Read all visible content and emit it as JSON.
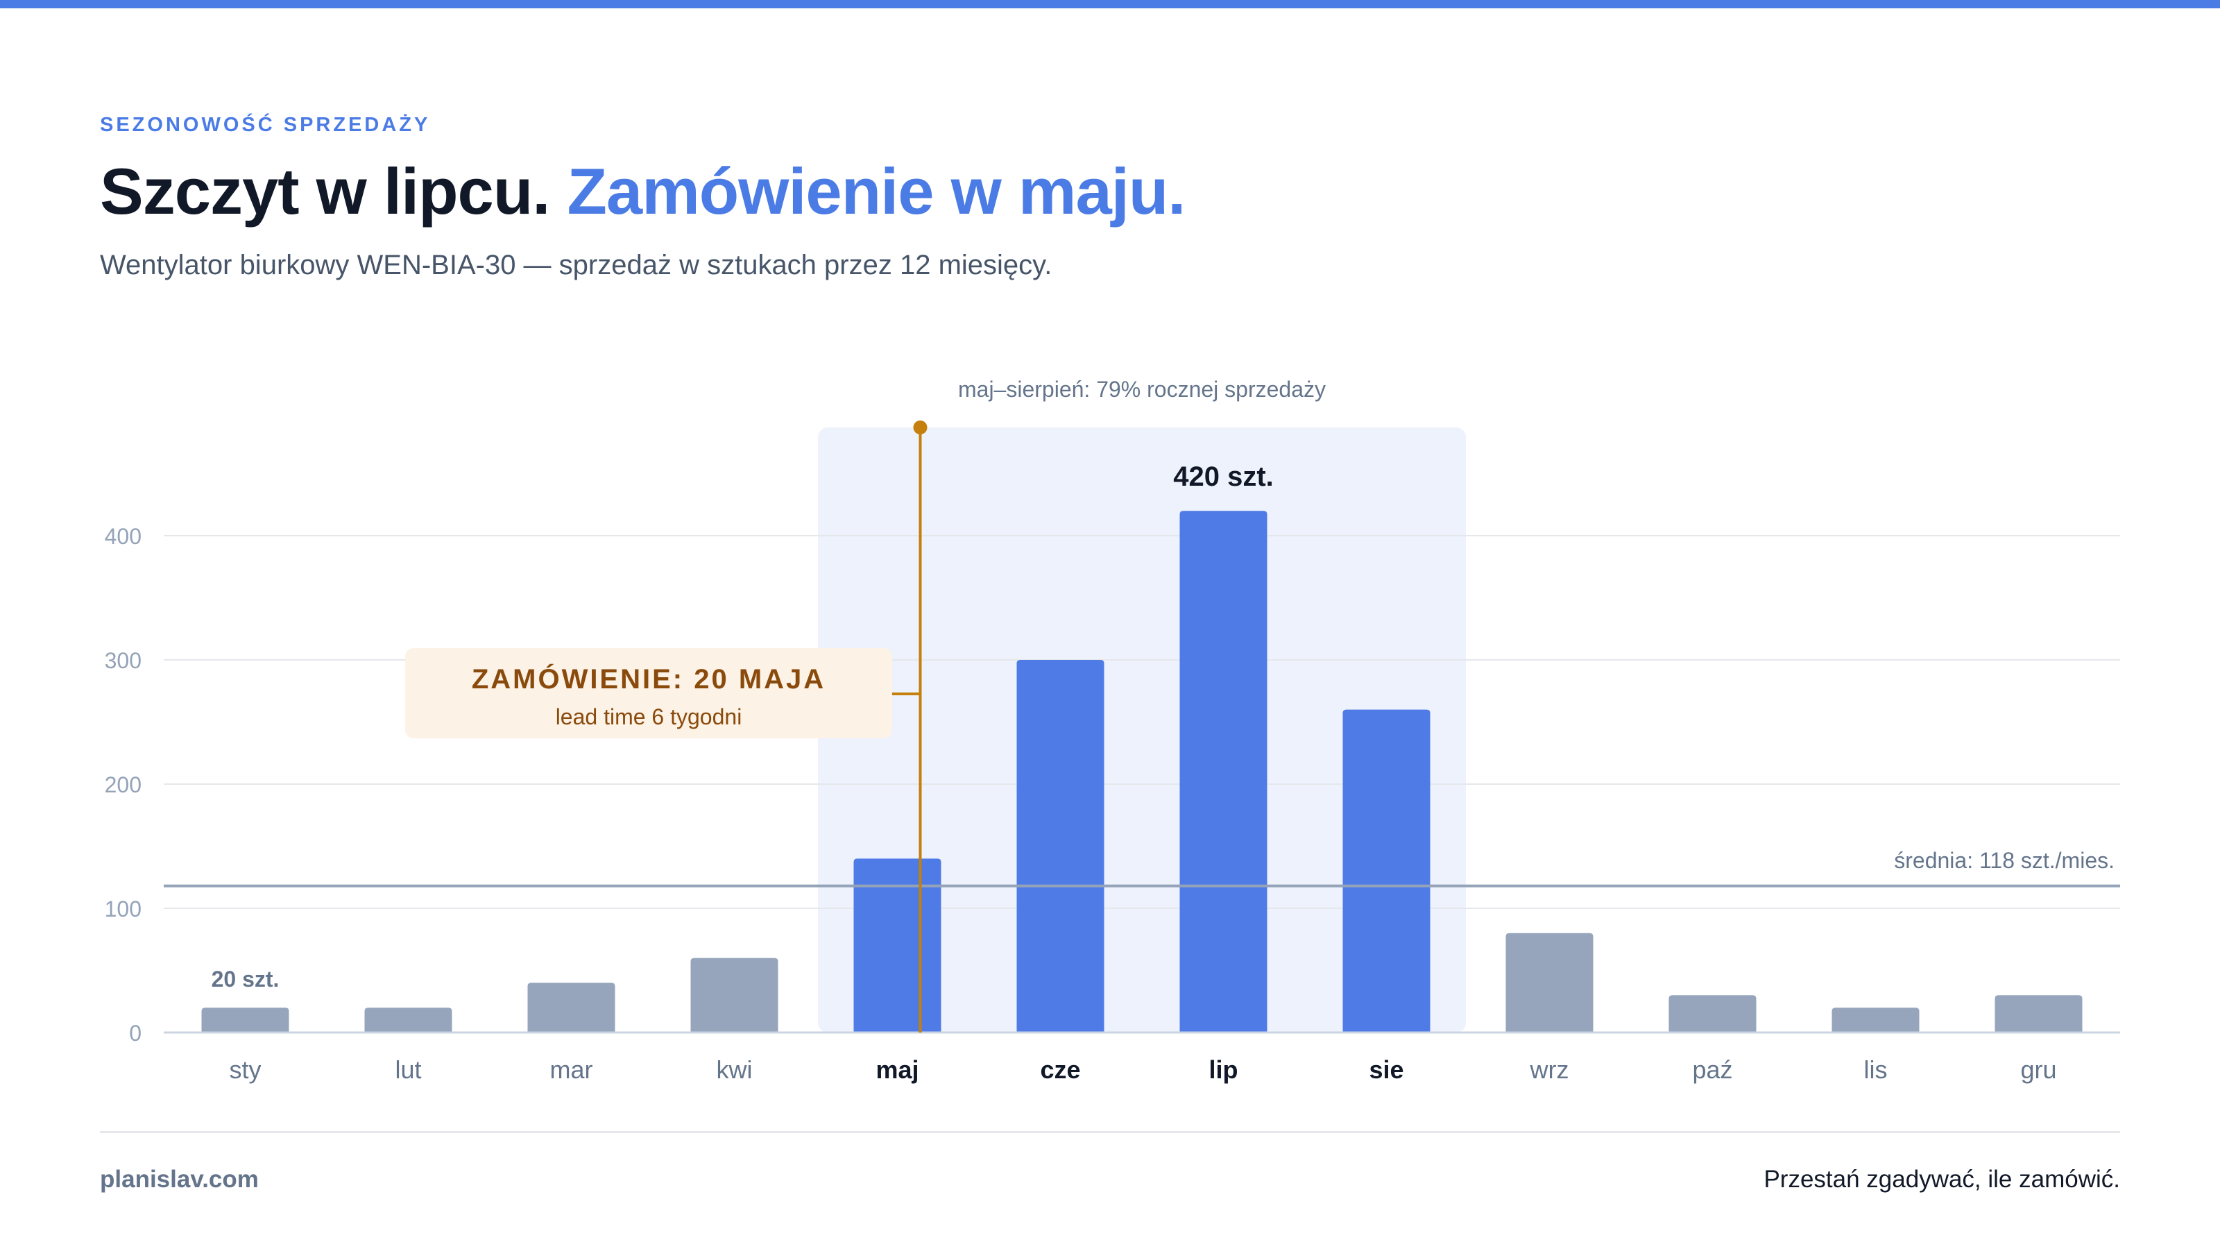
{
  "header": {
    "eyebrow": "SEZONOWOŚĆ SPRZEDAŻY",
    "headline_part1": "Szczyt w lipcu.",
    "headline_part2": "Zamówienie w maju.",
    "subtitle": "Wentylator biurkowy WEN-BIA-30 — sprzedaż w sztukach przez 12 miesięcy."
  },
  "chart_data": {
    "type": "bar",
    "title": "",
    "xlabel": "",
    "ylabel": "",
    "categories": [
      "sty",
      "lut",
      "mar",
      "kwi",
      "maj",
      "cze",
      "lip",
      "sie",
      "wrz",
      "paź",
      "lis",
      "gru"
    ],
    "values": [
      20,
      20,
      40,
      60,
      140,
      300,
      420,
      260,
      80,
      30,
      20,
      30
    ],
    "ylim": [
      0,
      400
    ],
    "yticks": [
      0,
      100,
      200,
      300,
      400
    ],
    "grid": true,
    "highlight_range": [
      "maj",
      "sie"
    ],
    "highlight_label": "maj–sierpień: 79% rocznej sprzedaży",
    "average": 118,
    "average_label": "średnia: 118 szt./mies.",
    "data_labels": [
      {
        "category": "sty",
        "text": "20 szt."
      },
      {
        "category": "lip",
        "text": "420 szt."
      }
    ],
    "order_marker": {
      "category": "maj",
      "title": "ZAMÓWIENIE: 20 MAJA",
      "subtitle": "lead time 6 tygodni"
    },
    "colors": {
      "highlight_bar": "#4f7be6",
      "base_bar": "#96a5bc",
      "highlight_band": "#eef2fc",
      "average_line": "#94a3b8",
      "marker": "#c47f0c",
      "callout_bg": "#fcf2e6",
      "callout_text": "#8a4a0c"
    }
  },
  "footer": {
    "left": "planislav.com",
    "right": "Przestań zgadywać, ile zamówić."
  }
}
